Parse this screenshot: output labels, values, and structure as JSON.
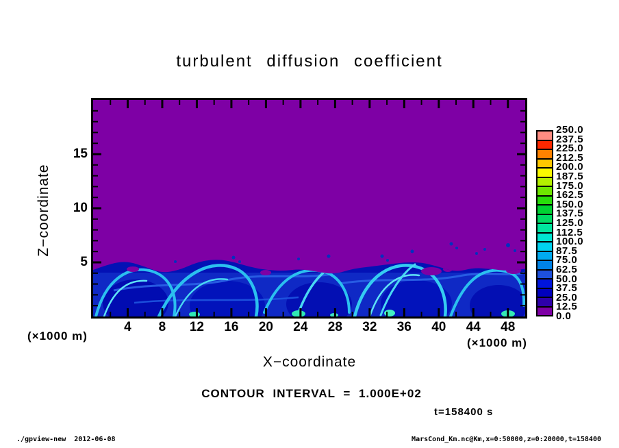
{
  "chart_data": {
    "type": "heatmap",
    "title": "turbulent diffusion coefficient",
    "xlabel": "X−coordinate",
    "ylabel": "Z−coordinate",
    "x_units": "(×1000 m)",
    "y_units": "(×1000 m)",
    "xlim": [
      0,
      50
    ],
    "ylim": [
      0,
      20
    ],
    "x_major_ticks": [
      4,
      8,
      12,
      16,
      20,
      24,
      28,
      32,
      36,
      40,
      44,
      48
    ],
    "x_minor_step": 2,
    "y_major_ticks": [
      5,
      10,
      15
    ],
    "y_minor_step": 1,
    "colorbar": {
      "levels": [
        0.0,
        12.5,
        25.0,
        37.5,
        50.0,
        62.5,
        75.0,
        87.5,
        100.0,
        112.5,
        125.0,
        137.5,
        150.0,
        162.5,
        175.0,
        187.5,
        200.0,
        212.5,
        225.0,
        237.5,
        250.0
      ],
      "labels": [
        "0.0",
        "12.5",
        "25.0",
        "37.5",
        "50.0",
        "62.5",
        "75.0",
        "87.5",
        "100.0",
        "112.5",
        "125.0",
        "137.5",
        "150.0",
        "162.5",
        "175.0",
        "187.5",
        "200.0",
        "212.5",
        "225.0",
        "237.5",
        "250.0"
      ],
      "colors": [
        "#7E00A5",
        "#2E00AA",
        "#0000BE",
        "#0014DC",
        "#1E50DC",
        "#0082E6",
        "#00AAF0",
        "#00D2F0",
        "#00E6D2",
        "#00E69E",
        "#00DC64",
        "#00D232",
        "#28DC0A",
        "#6EE600",
        "#B4F000",
        "#FAFA00",
        "#FFC800",
        "#FF8200",
        "#FF2800",
        "#FF8C82"
      ]
    },
    "contour_interval_text": "CONTOUR INTERVAL = 1.000E+02",
    "contour_interval": 100.0,
    "time_label": "t=158400 s",
    "time_seconds": 158400,
    "field": {
      "background_value_range": [
        0,
        12.5
      ],
      "turbulent_layer_value_range": [
        12.5,
        125
      ],
      "background_color": "#7E00A5",
      "turbulent_base_color": "#0311B5",
      "description": "Quiescent region (K≈0, purple) above z≈5; turbulent boundary layer below z≈5 with convective eddies and cyan filaments, K≈25–125.",
      "interface_profile_x_km": [
        0,
        2,
        4,
        6,
        8,
        10,
        12,
        14,
        16,
        18,
        20,
        22,
        24,
        26,
        28,
        30,
        32,
        34,
        36,
        38,
        40,
        42,
        44,
        46,
        48,
        50
      ],
      "interface_profile_z_km": [
        4.3,
        4.9,
        5.1,
        4.6,
        4.0,
        4.3,
        5.0,
        5.3,
        5.1,
        4.6,
        4.3,
        4.2,
        4.4,
        4.1,
        3.9,
        4.4,
        4.6,
        4.8,
        5.0,
        5.0,
        4.6,
        4.1,
        4.5,
        4.4,
        4.2,
        4.4
      ]
    }
  },
  "footer": {
    "left": "./gpview-new  2012-06-08",
    "right": "MarsCond_Km.nc@Km,x=0:50000,z=0:20000,t=158400"
  }
}
